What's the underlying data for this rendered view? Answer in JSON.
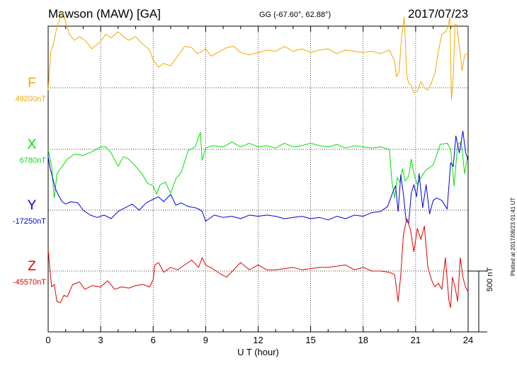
{
  "header": {
    "station": "Mawson (MAW)  [GA]",
    "coordinates": "GG (-67.60°,  62.88°)",
    "date": "2017/07/23"
  },
  "plotted_note": "Plotted at 2017/08/23 01:41 UT",
  "scale_label": "500 nT",
  "chart_data": {
    "type": "line",
    "xlabel": "U T (hour)",
    "xlim": [
      0,
      24
    ],
    "x_ticks": [
      "0",
      "3",
      "6",
      "9",
      "12",
      "15",
      "18",
      "21",
      "24"
    ],
    "grid": "dotted",
    "scale_bar_nT": 500,
    "colors": {
      "F": "#f5a800",
      "X": "#00e000",
      "Y": "#0000e0",
      "Z": "#e00000"
    },
    "series": [
      {
        "name": "F",
        "label": "F",
        "baseline_label": "49200nT",
        "baseline": 49200,
        "x": [
          0,
          0.15,
          0.3,
          0.5,
          0.7,
          0.85,
          1.0,
          1.2,
          1.5,
          1.8,
          2.1,
          2.5,
          3.0,
          3.3,
          3.6,
          4.0,
          4.3,
          4.6,
          5.0,
          5.4,
          5.8,
          6.0,
          6.1,
          6.3,
          6.6,
          7.0,
          7.4,
          7.8,
          8.2,
          8.5,
          8.8,
          9.0,
          9.3,
          9.7,
          10.2,
          10.6,
          11.0,
          11.5,
          12.0,
          12.5,
          13.0,
          13.5,
          14.0,
          14.5,
          15.0,
          15.5,
          16.0,
          16.5,
          17.0,
          17.5,
          18.0,
          18.5,
          19.0,
          19.5,
          19.8,
          19.9,
          20.05,
          20.2,
          20.35,
          20.5,
          20.6,
          20.75,
          20.9,
          21.1,
          21.3,
          21.5,
          21.7,
          21.9,
          22.1,
          22.3,
          22.5,
          22.7,
          22.85,
          22.95,
          23.05,
          23.15,
          23.25,
          23.35,
          23.5,
          23.65,
          23.8,
          24.0
        ],
        "y": [
          49180,
          49500,
          49560,
          49700,
          49780,
          49820,
          49740,
          49640,
          49590,
          49620,
          49590,
          49520,
          49580,
          49640,
          49610,
          49660,
          49620,
          49590,
          49620,
          49560,
          49510,
          49430,
          49410,
          49370,
          49400,
          49380,
          49460,
          49540,
          49530,
          49480,
          49500,
          49520,
          49460,
          49490,
          49530,
          49540,
          49490,
          49470,
          49490,
          49510,
          49500,
          49540,
          49500,
          49520,
          49490,
          49510,
          49520,
          49480,
          49510,
          49500,
          49490,
          49500,
          49480,
          49510,
          49420,
          49290,
          49330,
          49620,
          49780,
          49300,
          49240,
          49220,
          49160,
          49170,
          49250,
          49200,
          49180,
          49240,
          49320,
          49500,
          49640,
          49660,
          49700,
          49780,
          49100,
          49290,
          49720,
          49720,
          49540,
          49340,
          49470,
          49480
        ]
      },
      {
        "name": "X",
        "label": "X",
        "baseline_label": "6780nT",
        "baseline": 6780,
        "x": [
          0,
          0.2,
          0.35,
          0.5,
          0.7,
          0.9,
          1.1,
          1.5,
          2.0,
          2.5,
          3.0,
          3.3,
          3.6,
          4.0,
          4.3,
          4.6,
          5.0,
          5.3,
          5.7,
          6.0,
          6.2,
          6.4,
          6.7,
          7.0,
          7.3,
          7.6,
          8.0,
          8.4,
          8.7,
          8.8,
          9.0,
          9.4,
          10.0,
          10.5,
          11.0,
          11.5,
          12.0,
          12.5,
          13.0,
          13.5,
          14.0,
          14.5,
          15.0,
          15.5,
          16.0,
          16.5,
          17.0,
          17.5,
          18.0,
          18.5,
          19.0,
          19.5,
          19.65,
          19.8,
          19.95,
          20.1,
          20.25,
          20.4,
          20.6,
          20.75,
          20.9,
          21.1,
          21.3,
          21.6,
          22.0,
          22.4,
          22.8,
          23.0,
          23.2,
          23.4,
          23.6,
          23.8,
          24.0
        ],
        "y": [
          6780,
          6640,
          6380,
          6580,
          6620,
          6660,
          6700,
          6740,
          6730,
          6760,
          6800,
          6800,
          6750,
          6640,
          6720,
          6700,
          6640,
          6590,
          6500,
          6480,
          6410,
          6490,
          6510,
          6420,
          6540,
          6590,
          6770,
          6800,
          6920,
          6690,
          6790,
          6810,
          6800,
          6840,
          6800,
          6830,
          6800,
          6810,
          6790,
          6830,
          6800,
          6810,
          6830,
          6810,
          6800,
          6820,
          6790,
          6810,
          6800,
          6790,
          6800,
          6780,
          6510,
          6380,
          6550,
          6510,
          6620,
          6520,
          6560,
          6700,
          6580,
          6490,
          6550,
          6610,
          6650,
          6820,
          6830,
          6780,
          6480,
          6820,
          6840,
          6580,
          6750
        ]
      },
      {
        "name": "Y",
        "label": "Y",
        "baseline_label": "-17250nT",
        "baseline": -17250,
        "x": [
          0,
          0.1,
          0.25,
          0.4,
          0.6,
          0.8,
          1.0,
          1.3,
          1.7,
          2.0,
          2.4,
          2.8,
          3.2,
          3.6,
          4.0,
          4.4,
          4.8,
          5.2,
          5.6,
          6.0,
          6.3,
          6.6,
          7.0,
          7.3,
          7.6,
          8.0,
          8.4,
          8.6,
          8.8,
          9.0,
          9.5,
          10.0,
          10.5,
          11.0,
          11.5,
          12.0,
          12.5,
          13.0,
          13.5,
          14.0,
          14.5,
          15.0,
          15.5,
          16.0,
          16.5,
          17.0,
          17.5,
          18.0,
          18.5,
          19.0,
          19.4,
          19.7,
          19.85,
          20.0,
          20.15,
          20.3,
          20.45,
          20.6,
          20.75,
          20.9,
          21.05,
          21.2,
          21.4,
          21.6,
          21.8,
          22.0,
          22.2,
          22.5,
          22.8,
          23.0,
          23.15,
          23.3,
          23.5,
          23.7,
          23.85,
          24.0
        ],
        "y": [
          -16810,
          -16900,
          -16980,
          -17070,
          -17130,
          -17180,
          -17200,
          -17180,
          -17190,
          -17250,
          -17290,
          -17310,
          -17290,
          -17320,
          -17260,
          -17230,
          -17200,
          -17250,
          -17190,
          -17160,
          -17140,
          -17180,
          -17120,
          -17210,
          -17190,
          -17220,
          -17230,
          -17240,
          -17260,
          -17340,
          -17290,
          -17310,
          -17300,
          -17320,
          -17290,
          -17300,
          -17290,
          -17300,
          -17320,
          -17310,
          -17300,
          -17320,
          -17310,
          -17330,
          -17300,
          -17320,
          -17290,
          -17300,
          -17270,
          -17260,
          -17220,
          -17100,
          -17050,
          -17260,
          -16960,
          -17120,
          -17330,
          -17360,
          -17110,
          -17040,
          -17140,
          -16950,
          -17230,
          -17040,
          -17280,
          -17170,
          -17150,
          -17170,
          -17240,
          -16860,
          -16890,
          -16640,
          -16780,
          -16600,
          -16770,
          -16840
        ]
      },
      {
        "name": "Z",
        "label": "Z",
        "baseline_label": "-45570nT",
        "baseline": -45570,
        "x": [
          0,
          0.1,
          0.2,
          0.35,
          0.5,
          0.7,
          0.9,
          1.1,
          1.4,
          1.8,
          2.1,
          2.5,
          3.0,
          3.4,
          3.8,
          4.2,
          4.6,
          5.0,
          5.4,
          5.8,
          6.0,
          6.1,
          6.3,
          6.6,
          7.0,
          7.4,
          7.8,
          8.2,
          8.6,
          8.8,
          9.0,
          9.4,
          9.8,
          10.2,
          10.6,
          11.0,
          11.5,
          12.0,
          12.5,
          13.0,
          13.5,
          14.0,
          14.5,
          15.0,
          15.5,
          16.0,
          16.5,
          17.0,
          17.5,
          18.0,
          18.5,
          19.0,
          19.5,
          19.8,
          19.9,
          20.0,
          20.15,
          20.3,
          20.5,
          20.7,
          20.9,
          21.1,
          21.3,
          21.5,
          21.7,
          21.9,
          22.1,
          22.3,
          22.5,
          22.7,
          22.9,
          23.0,
          23.1,
          23.25,
          23.4,
          23.55,
          23.7,
          23.85,
          24.0
        ],
        "y": [
          -45390,
          -45560,
          -45700,
          -45680,
          -45820,
          -45830,
          -45770,
          -45780,
          -45680,
          -45660,
          -45720,
          -45690,
          -45700,
          -45650,
          -45720,
          -45700,
          -45710,
          -45690,
          -45680,
          -45700,
          -45640,
          -45520,
          -45500,
          -45580,
          -45540,
          -45560,
          -45520,
          -45480,
          -45540,
          -45460,
          -45520,
          -45550,
          -45590,
          -45620,
          -45560,
          -45500,
          -45560,
          -45520,
          -45560,
          -45560,
          -45550,
          -45540,
          -45560,
          -45550,
          -45540,
          -45540,
          -45530,
          -45520,
          -45560,
          -45540,
          -45570,
          -45570,
          -45580,
          -45600,
          -45710,
          -45820,
          -45600,
          -45270,
          -45140,
          -45230,
          -45410,
          -45220,
          -45310,
          -45200,
          -45540,
          -45640,
          -45700,
          -45670,
          -45720,
          -45460,
          -45810,
          -45870,
          -45620,
          -45700,
          -45820,
          -45460,
          -45620,
          -45700,
          -45740
        ]
      }
    ]
  }
}
